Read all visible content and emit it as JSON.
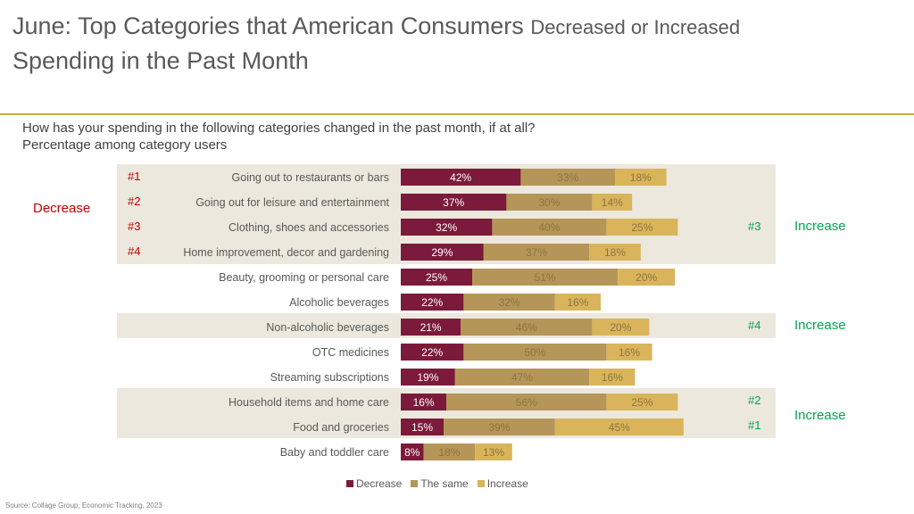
{
  "title": {
    "part1": "June: Top Categories that American Consumers ",
    "part2": "Decreased  or Increased",
    "part3": "Spending in the Past Month"
  },
  "question": {
    "line1": "How has your spending in the following categories changed in the past month, if at all?",
    "line2": "Percentage among category users"
  },
  "side_labels": {
    "decrease": "Decrease",
    "increase_1": "Increase",
    "increase_2": "Increase",
    "increase_3": "Increase"
  },
  "ranks_left": [
    "#1",
    "#2",
    "#3",
    "#4"
  ],
  "ranks_right": [
    "#3",
    "#4",
    "#2",
    "#1"
  ],
  "colors": {
    "decrease": "#7b1a3a",
    "the_same": "#b59658",
    "increase": "#d9b45a",
    "band": "#ede8dd",
    "rule": "#c9a94a"
  },
  "chart_data": {
    "type": "bar",
    "orientation": "horizontal",
    "stacked": true,
    "categories": [
      "Going out to restaurants or bars",
      "Going out for leisure and entertainment",
      "Clothing, shoes and accessories",
      "Home improvement, decor and gardening",
      "Beauty, grooming or personal care",
      "Alcoholic beverages",
      "Non-alcoholic beverages",
      "OTC medicines",
      "Streaming subscriptions",
      "Household items and home care",
      "Food and groceries",
      "Baby and toddler care"
    ],
    "series": [
      {
        "name": "Decrease",
        "values": [
          42,
          37,
          32,
          29,
          25,
          22,
          21,
          22,
          19,
          16,
          15,
          8
        ]
      },
      {
        "name": "The same",
        "values": [
          33,
          30,
          40,
          37,
          51,
          32,
          46,
          50,
          47,
          56,
          39,
          18
        ]
      },
      {
        "name": "Increase",
        "values": [
          18,
          14,
          25,
          18,
          20,
          16,
          20,
          16,
          16,
          25,
          45,
          13
        ]
      }
    ],
    "legend": "bottom",
    "value_suffix": "%"
  },
  "source": "Source: Collage Group, Economic Tracking, 2023"
}
